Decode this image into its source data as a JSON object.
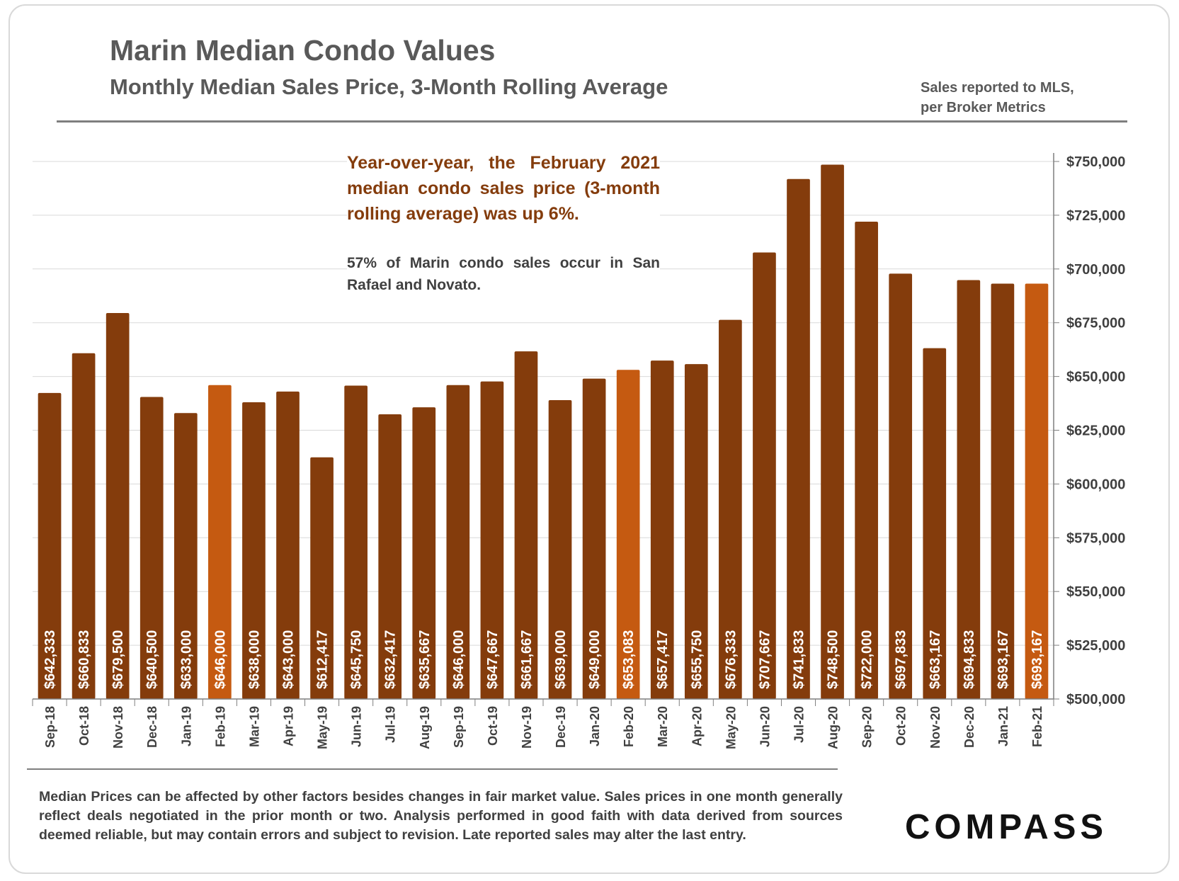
{
  "header": {
    "title": "Marin Median Condo Values",
    "subtitle": "Monthly Median Sales Price, 3-Month Rolling Average",
    "source_line1": "Sales reported to MLS,",
    "source_line2": "per Broker Metrics"
  },
  "annotations": {
    "main": "Year-over-year, the February 2021 median condo sales price (3-month rolling average) was up 6%.",
    "sub": "57% of Marin condo sales occur in San Rafael and Novato."
  },
  "footer": {
    "note": "Median Prices can be affected by other factors besides changes in fair market value. Sales prices in one month generally reflect deals negotiated in the prior month or two. Analysis performed in good faith with data derived from sources deemed reliable, but may contain errors and subject to revision. Late reported sales may alter the last entry.",
    "logo": "COMPASS"
  },
  "colors": {
    "bar": "#843c0c",
    "highlight": "#c55a11",
    "grid": "#d9d9d9",
    "axis": "#7f7f7f"
  },
  "chart_data": {
    "type": "bar",
    "title": "Marin Median Condo Values",
    "subtitle": "Monthly Median Sales Price, 3-Month Rolling Average",
    "categories": [
      "Sep-18",
      "Oct-18",
      "Nov-18",
      "Dec-18",
      "Jan-19",
      "Feb-19",
      "Mar-19",
      "Apr-19",
      "May-19",
      "Jun-19",
      "Jul-19",
      "Aug-19",
      "Sep-19",
      "Oct-19",
      "Nov-19",
      "Dec-19",
      "Jan-20",
      "Feb-20",
      "Mar-20",
      "Apr-20",
      "May-20",
      "Jun-20",
      "Jul-20",
      "Aug-20",
      "Sep-20",
      "Oct-20",
      "Nov-20",
      "Dec-20",
      "Jan-21",
      "Feb-21"
    ],
    "values": [
      642333,
      660833,
      679500,
      640500,
      633000,
      646000,
      638000,
      643000,
      612417,
      645750,
      632417,
      635667,
      646000,
      647667,
      661667,
      639000,
      649000,
      653083,
      657417,
      655750,
      676333,
      707667,
      741833,
      748500,
      722000,
      697833,
      663167,
      694833,
      693167,
      693167
    ],
    "data_labels": [
      "$642,333",
      "$660,833",
      "$679,500",
      "$640,500",
      "$633,000",
      "$646,000",
      "$638,000",
      "$643,000",
      "$612,417",
      "$645,750",
      "$632,417",
      "$635,667",
      "$646,000",
      "$647,667",
      "$661,667",
      "$639,000",
      "$649,000",
      "$653,083",
      "$657,417",
      "$655,750",
      "$676,333",
      "$707,667",
      "$741,833",
      "$748,500",
      "$722,000",
      "$697,833",
      "$663,167",
      "$694,833",
      "$693,167",
      "$693,167"
    ],
    "highlighted": [
      "Feb-19",
      "Feb-20",
      "Feb-21"
    ],
    "ylim": [
      500000,
      750000
    ],
    "y_ticks": [
      500000,
      525000,
      550000,
      575000,
      600000,
      625000,
      650000,
      675000,
      700000,
      725000,
      750000
    ],
    "y_tick_labels": [
      "$500,000",
      "$525,000",
      "$550,000",
      "$575,000",
      "$600,000",
      "$625,000",
      "$650,000",
      "$675,000",
      "$700,000",
      "$725,000",
      "$750,000"
    ],
    "y_axis_side": "right",
    "grid": true,
    "legend": "none"
  }
}
